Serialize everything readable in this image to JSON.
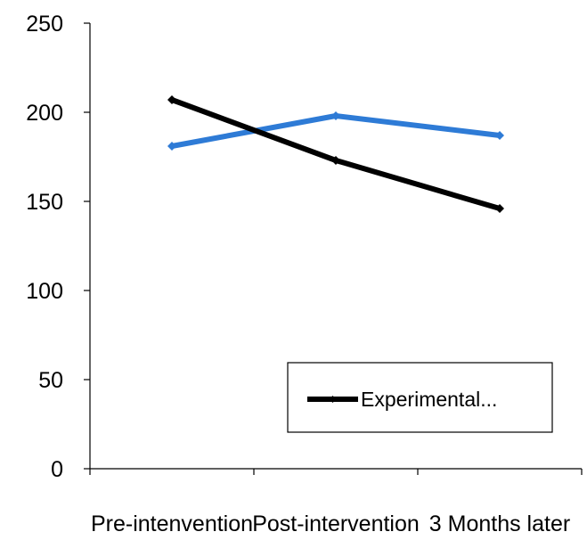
{
  "chart_data": {
    "type": "line",
    "categories": [
      "Pre-intenvention",
      "Post-intervention",
      "3 Months later"
    ],
    "series": [
      {
        "name": "Experimental...",
        "values": [
          207,
          173,
          146
        ],
        "color": "#000000"
      },
      {
        "values": [
          181,
          198,
          187
        ],
        "color": "#2E7BD6"
      }
    ],
    "ylim": [
      0,
      250
    ],
    "yticks": [
      0,
      50,
      100,
      150,
      200,
      250
    ],
    "grid": false,
    "legend_position": "bottom-right",
    "marker": "diamond"
  }
}
